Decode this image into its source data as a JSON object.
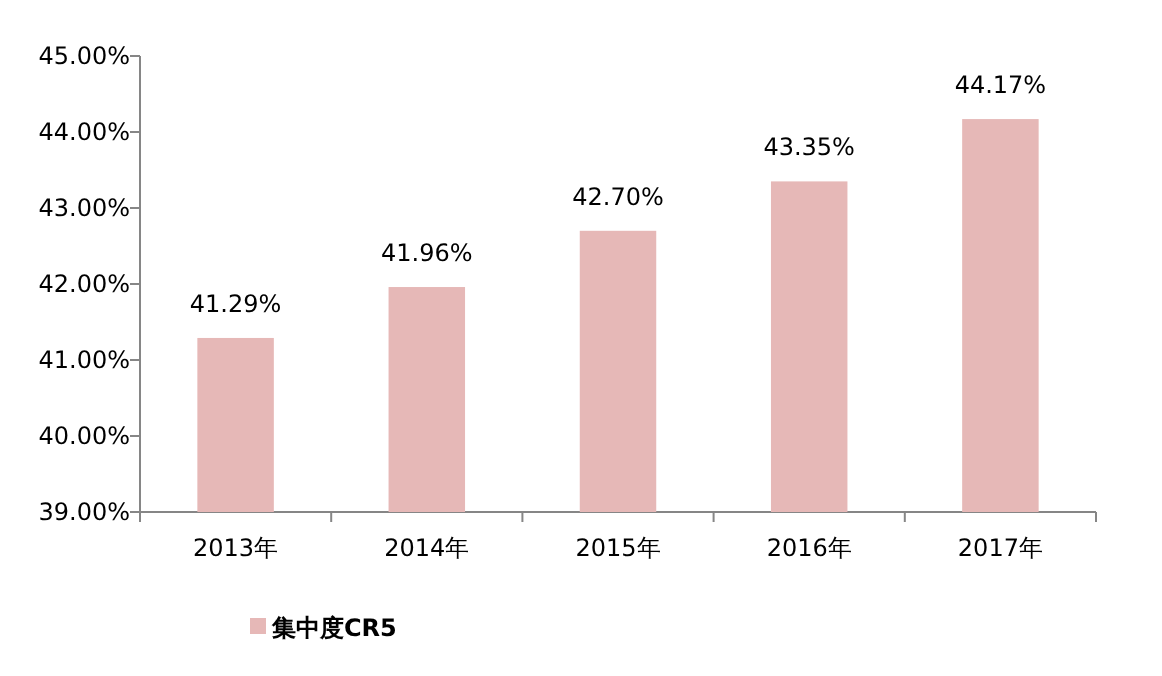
{
  "chart_data": {
    "type": "bar",
    "categories": [
      "2013年",
      "2014年",
      "2015年",
      "2016年",
      "2017年"
    ],
    "series": [
      {
        "name": "集中度CR5",
        "color": "#e6b8b7",
        "values": [
          41.29,
          41.96,
          42.7,
          43.35,
          44.17
        ],
        "value_labels": [
          "41.29%",
          "41.96%",
          "42.70%",
          "43.35%",
          "44.17%"
        ]
      }
    ],
    "ylim": [
      39,
      45
    ],
    "yticks": [
      {
        "value": 39,
        "label": "39.00%"
      },
      {
        "value": 40,
        "label": "40.00%"
      },
      {
        "value": 41,
        "label": "41.00%"
      },
      {
        "value": 42,
        "label": "42.00%"
      },
      {
        "value": 43,
        "label": "43.00%"
      },
      {
        "value": 44,
        "label": "44.00%"
      },
      {
        "value": 45,
        "label": "45.00%"
      }
    ],
    "legend": "bottom",
    "grid": false
  }
}
